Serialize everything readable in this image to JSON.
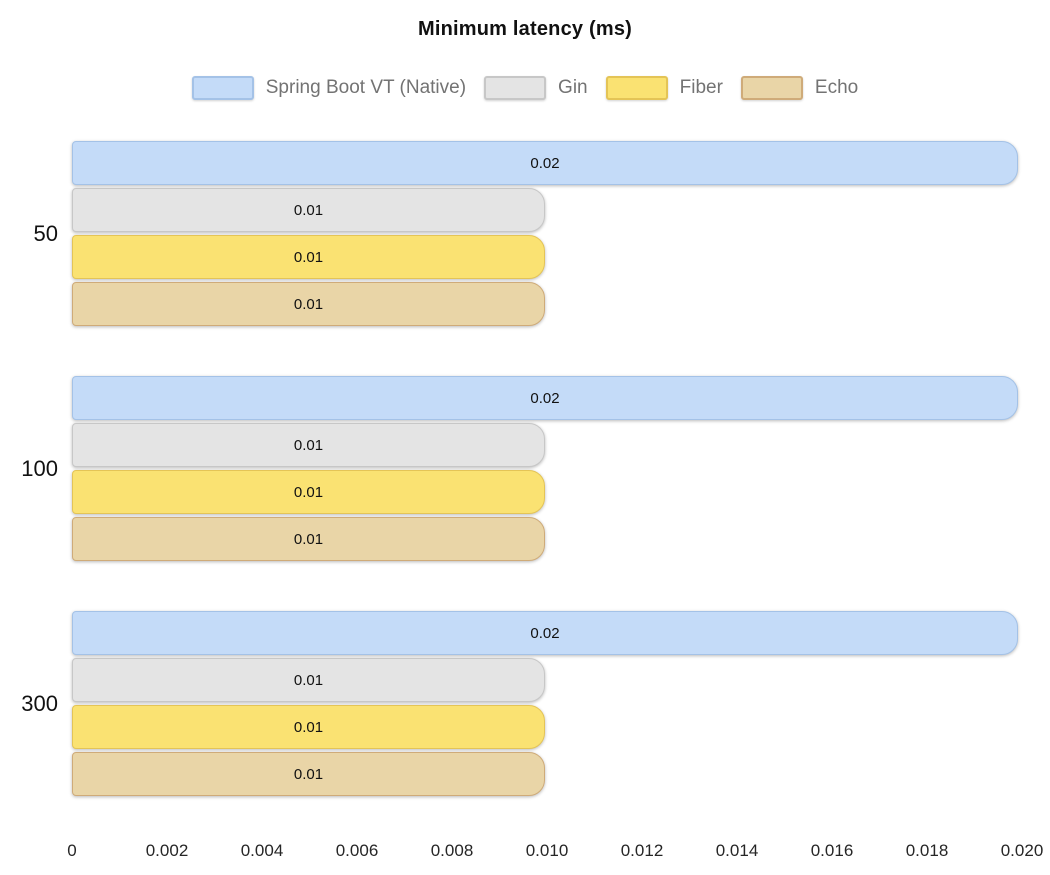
{
  "title": "Minimum latency (ms)",
  "chart_data": {
    "type": "bar",
    "orientation": "horizontal",
    "title": "Minimum latency (ms)",
    "categories": [
      "50",
      "100",
      "300"
    ],
    "series": [
      {
        "name": "Spring Boot VT (Native)",
        "values": [
          0.02,
          0.02,
          0.02
        ],
        "labels": [
          "0.02",
          "0.02",
          "0.02"
        ],
        "fill": "#c4dbf8",
        "border": "#a4c2e7"
      },
      {
        "name": "Gin",
        "values": [
          0.01,
          0.01,
          0.01
        ],
        "labels": [
          "0.01",
          "0.01",
          "0.01"
        ],
        "fill": "#e4e4e4",
        "border": "#c7c7c7"
      },
      {
        "name": "Fiber",
        "values": [
          0.01,
          0.01,
          0.01
        ],
        "labels": [
          "0.01",
          "0.01",
          "0.01"
        ],
        "fill": "#fae272",
        "border": "#e4c456"
      },
      {
        "name": "Echo",
        "values": [
          0.01,
          0.01,
          0.01
        ],
        "labels": [
          "0.01",
          "0.01",
          "0.01"
        ],
        "fill": "#e9d5a7",
        "border": "#cfab79"
      }
    ],
    "xlabel": "",
    "ylabel": "",
    "xlim": [
      0,
      0.02
    ],
    "x_ticks": [
      "0",
      "0.002",
      "0.004",
      "0.006",
      "0.008",
      "0.010",
      "0.012",
      "0.014",
      "0.016",
      "0.018",
      "0.020"
    ],
    "value_labels_shown": true,
    "legend_position": "top",
    "grid": false,
    "background_color": "#ffffff",
    "title_color": "#111111",
    "legend_text_color": "#737373",
    "tick_text_color": "#262626"
  }
}
